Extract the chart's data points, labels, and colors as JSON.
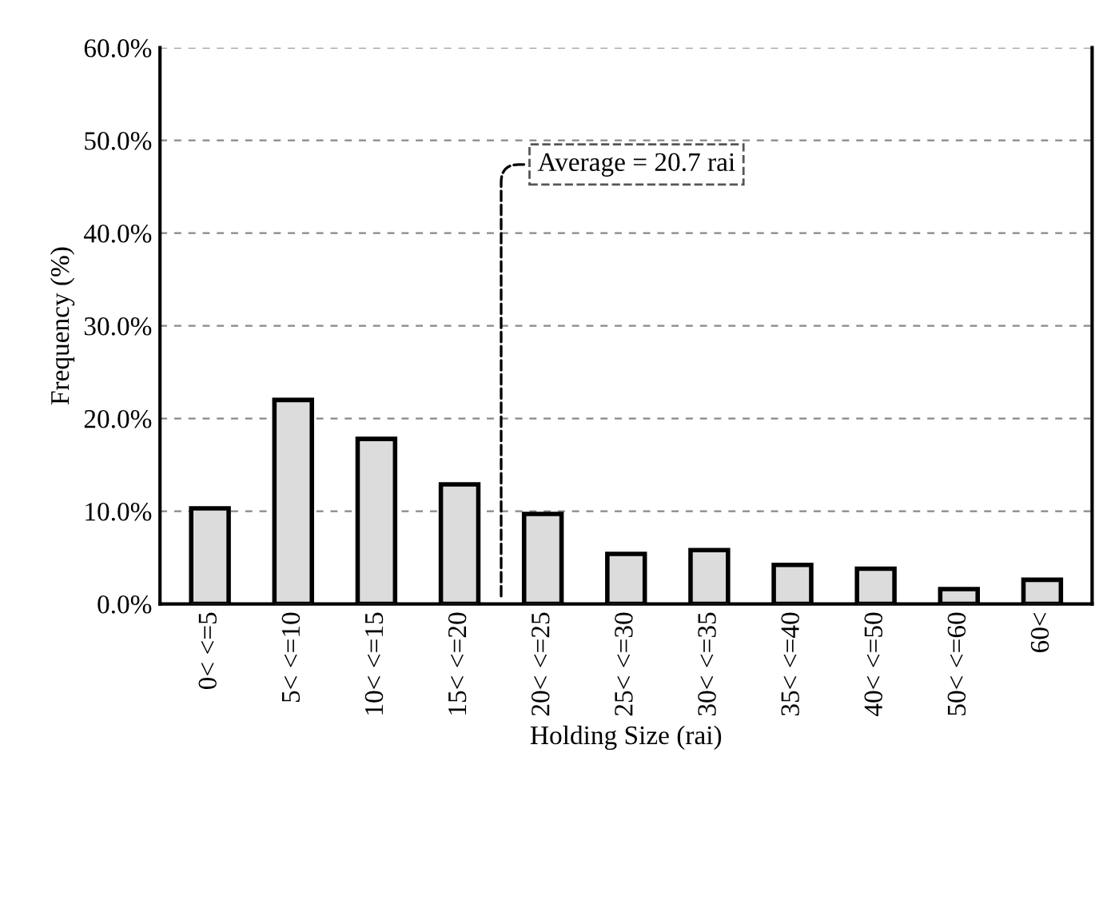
{
  "chart_data": {
    "type": "bar",
    "xlabel": "Holding Size (rai)",
    "ylabel": "Frequency (%)",
    "categories": [
      "0< <=5",
      "5< <=10",
      "10< <=15",
      "15< <=20",
      "20< <=25",
      "25< <=30",
      "30< <=35",
      "35< <=40",
      "40< <=50",
      "50< <=60",
      "60<"
    ],
    "values": [
      10.3,
      22.0,
      17.8,
      12.9,
      9.7,
      5.4,
      5.8,
      4.2,
      3.8,
      1.6,
      2.6
    ],
    "color": "#dcdcdc",
    "ylim": [
      0,
      60
    ],
    "yticks": [
      {
        "value": 0,
        "label": "0.0%"
      },
      {
        "value": 10,
        "label": "10.0%"
      },
      {
        "value": 20,
        "label": "20.0%"
      },
      {
        "value": 30,
        "label": "30.0%"
      },
      {
        "value": 40,
        "label": "40.0%"
      },
      {
        "value": 50,
        "label": "50.0%"
      },
      {
        "value": 60,
        "label": "60.0%"
      }
    ],
    "grid": "y",
    "annotations": [
      "Average = 20.7 rai"
    ]
  }
}
